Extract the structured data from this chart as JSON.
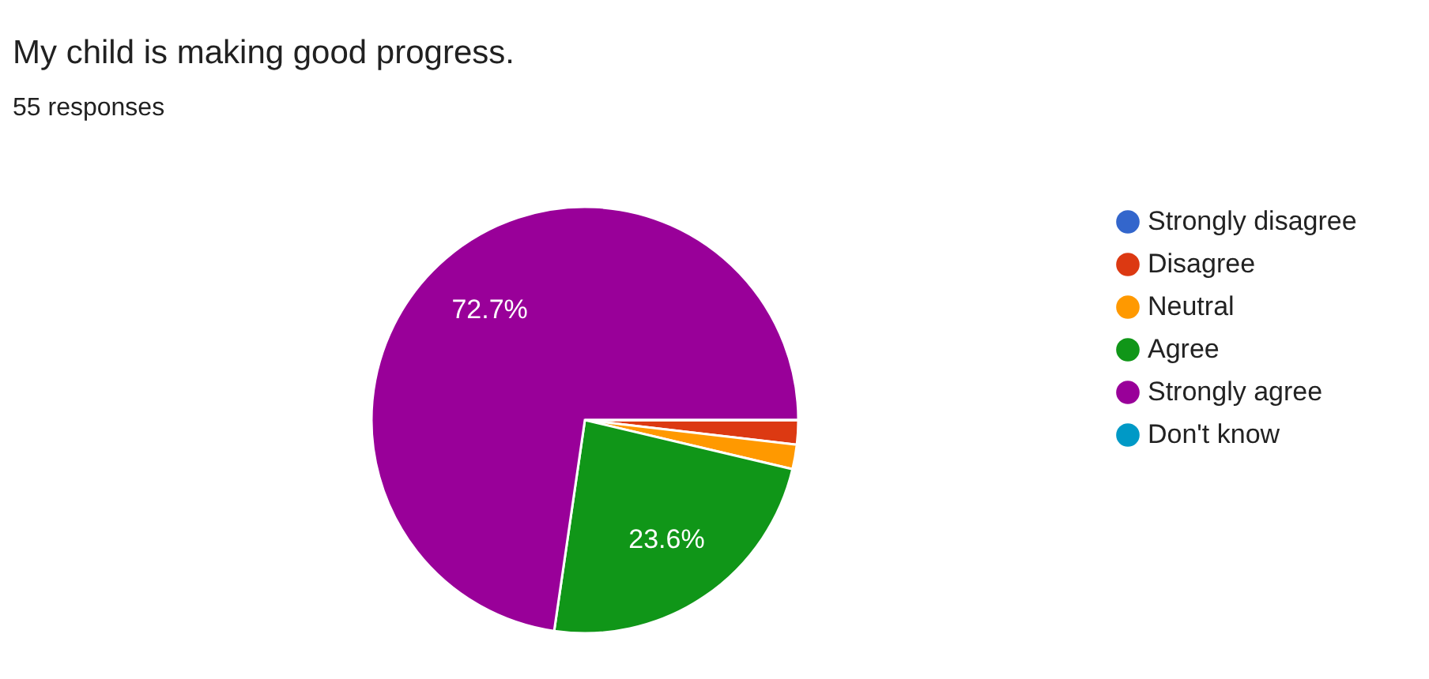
{
  "chart_data": {
    "type": "pie",
    "title": "My child is making good progress.",
    "subtitle": "55 responses",
    "categories": [
      "Strongly disagree",
      "Disagree",
      "Neutral",
      "Agree",
      "Strongly agree",
      "Don't know"
    ],
    "values": [
      0,
      1.85,
      1.85,
      23.6,
      72.7,
      0
    ],
    "colors": [
      "#3366cc",
      "#dc3912",
      "#ff9900",
      "#109618",
      "#990099",
      "#0099c6"
    ],
    "value_labels": [
      null,
      null,
      null,
      "23.6%",
      "72.7%",
      null
    ],
    "legend": "right"
  }
}
